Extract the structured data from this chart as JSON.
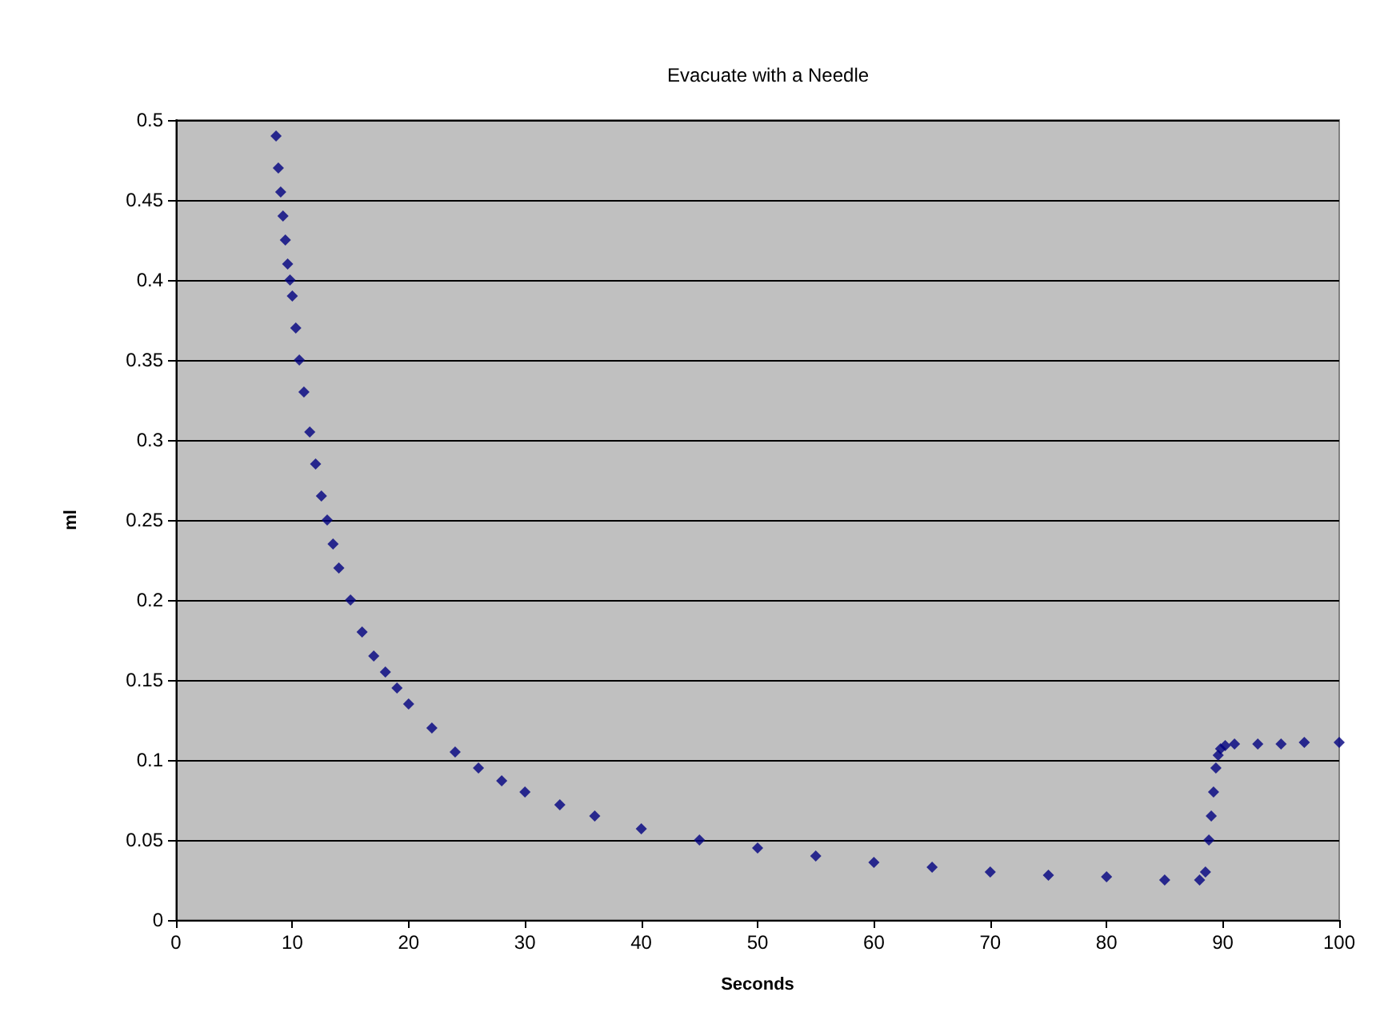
{
  "chart_data": {
    "type": "scatter",
    "title": "Evacuate with a Needle",
    "xlabel": "Seconds",
    "ylabel": "ml",
    "x": [
      8.6,
      8.8,
      9.0,
      9.2,
      9.4,
      9.6,
      9.8,
      10,
      10.3,
      10.6,
      11,
      11.5,
      12,
      12.5,
      13,
      13.5,
      14,
      15,
      16,
      17,
      18,
      19,
      20,
      22,
      24,
      26,
      28,
      30,
      33,
      36,
      40,
      45,
      50,
      55,
      60,
      65,
      70,
      75,
      80,
      85,
      88,
      88.5,
      88.8,
      89.0,
      89.2,
      89.4,
      89.6,
      89.8,
      90.2,
      91,
      93,
      95,
      97,
      100
    ],
    "series": [
      {
        "color": "#000080",
        "values": [
          0.49,
          0.47,
          0.455,
          0.44,
          0.425,
          0.41,
          0.4,
          0.39,
          0.37,
          0.35,
          0.33,
          0.305,
          0.285,
          0.265,
          0.25,
          0.235,
          0.22,
          0.2,
          0.18,
          0.165,
          0.155,
          0.145,
          0.135,
          0.12,
          0.105,
          0.095,
          0.087,
          0.08,
          0.072,
          0.065,
          0.057,
          0.05,
          0.045,
          0.04,
          0.036,
          0.033,
          0.03,
          0.028,
          0.027,
          0.025,
          0.025,
          0.03,
          0.05,
          0.065,
          0.08,
          0.095,
          0.103,
          0.107,
          0.109,
          0.11,
          0.11,
          0.11,
          0.111,
          0.111
        ]
      }
    ],
    "xlim": [
      0,
      100
    ],
    "xticks": [
      0,
      10,
      20,
      30,
      40,
      50,
      60,
      70,
      80,
      90,
      100
    ],
    "ylim": [
      0,
      0.5
    ],
    "yticks": [
      0,
      0.05,
      0.1,
      0.15,
      0.2,
      0.25,
      0.3,
      0.35,
      0.4,
      0.45,
      0.5
    ],
    "grid": "y",
    "marker": "diamond"
  }
}
